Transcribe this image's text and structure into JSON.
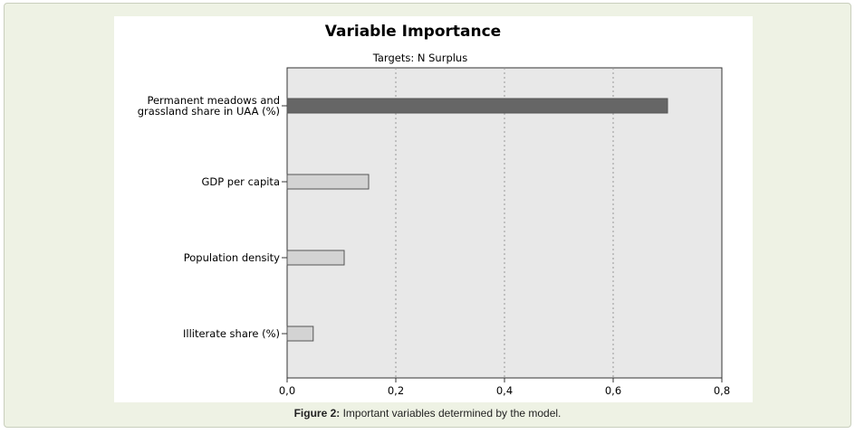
{
  "chart_data": {
    "type": "bar",
    "orientation": "horizontal",
    "title": "Variable Importance",
    "subtitle": "Targets: N Surplus",
    "categories": [
      [
        "Permanent meadows and",
        "grassland share in UAA (%)"
      ],
      [
        "GDP per capita"
      ],
      [
        "Population density"
      ],
      [
        "Illiterate share (%)"
      ]
    ],
    "values": [
      0.7,
      0.15,
      0.105,
      0.048
    ],
    "xlim": [
      0,
      0.8
    ],
    "xticks": [
      "0,0",
      "0,2",
      "0,4",
      "0,6",
      "0,8"
    ],
    "xtick_values": [
      0,
      0.2,
      0.4,
      0.6,
      0.8
    ],
    "grid": "vertical dotted",
    "colors": {
      "highlight_bar": "#666666",
      "bar": "#d3d3d3",
      "plot_background": "#e8e8e8"
    }
  },
  "caption": {
    "label": "Figure 2:",
    "text": " Important variables determined by the model."
  }
}
